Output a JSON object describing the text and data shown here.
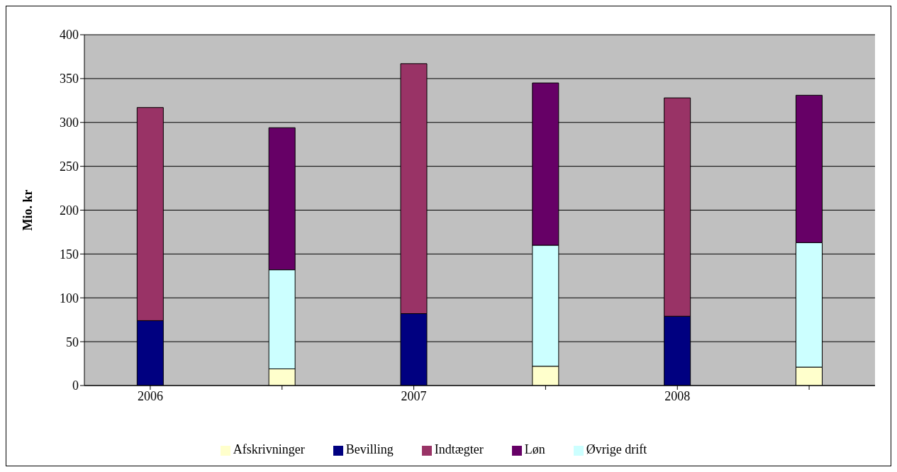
{
  "chart_data": {
    "type": "bar",
    "stacked": true,
    "ylabel": "Mio. kr",
    "categories": [
      "2006",
      null,
      "2007",
      null,
      "2008",
      null
    ],
    "series": [
      {
        "name": "Bevilling",
        "color": "#000080",
        "values": [
          74,
          null,
          82,
          null,
          79,
          null
        ]
      },
      {
        "name": "Indtægter",
        "color": "#993366",
        "values": [
          243,
          null,
          285,
          null,
          249,
          null
        ]
      },
      {
        "name": "Afskrivninger",
        "color": "#ffffcc",
        "values": [
          null,
          19,
          null,
          22,
          null,
          21
        ]
      },
      {
        "name": "Øvrige drift",
        "color": "#ccffff",
        "values": [
          null,
          113,
          null,
          138,
          null,
          142
        ]
      },
      {
        "name": "Løn",
        "color": "#660066",
        "values": [
          null,
          162,
          null,
          185,
          null,
          168
        ]
      }
    ],
    "ylim": [
      0,
      400
    ],
    "yticks": [
      0,
      50,
      100,
      150,
      200,
      250,
      300,
      350,
      400
    ],
    "grid": "y",
    "legend": "bottom"
  }
}
